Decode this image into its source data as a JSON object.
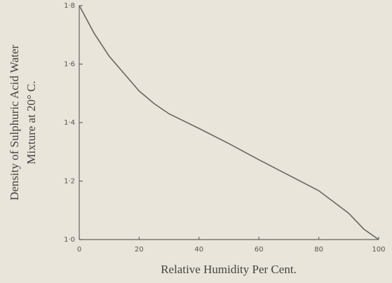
{
  "chart_data": {
    "type": "line",
    "ylabel": [
      "Density of Sulphuric Acid Water",
      "Mixture at 20° C."
    ],
    "xlabel": "Relative Humidity Per Cent.",
    "x": [
      0,
      5,
      10,
      20,
      25,
      30,
      40,
      50,
      60,
      70,
      80,
      90,
      95,
      100
    ],
    "series": [
      {
        "color": "#666666",
        "values": [
          1.8,
          1.705,
          1.627,
          1.508,
          1.465,
          1.43,
          1.38,
          1.328,
          1.273,
          1.22,
          1.167,
          1.09,
          1.036,
          1.0
        ]
      }
    ],
    "xlim": [
      0,
      100
    ],
    "xticks": [
      0,
      20,
      40,
      60,
      80,
      100
    ],
    "ylim": [
      1.0,
      1.8
    ],
    "yticks": [
      {
        "value": 1.0,
        "label": "1·0"
      },
      {
        "value": 1.2,
        "label": "1·2"
      },
      {
        "value": 1.4,
        "label": "1·4"
      },
      {
        "value": 1.6,
        "label": "1·6"
      },
      {
        "value": 1.8,
        "label": "1·8"
      }
    ]
  }
}
